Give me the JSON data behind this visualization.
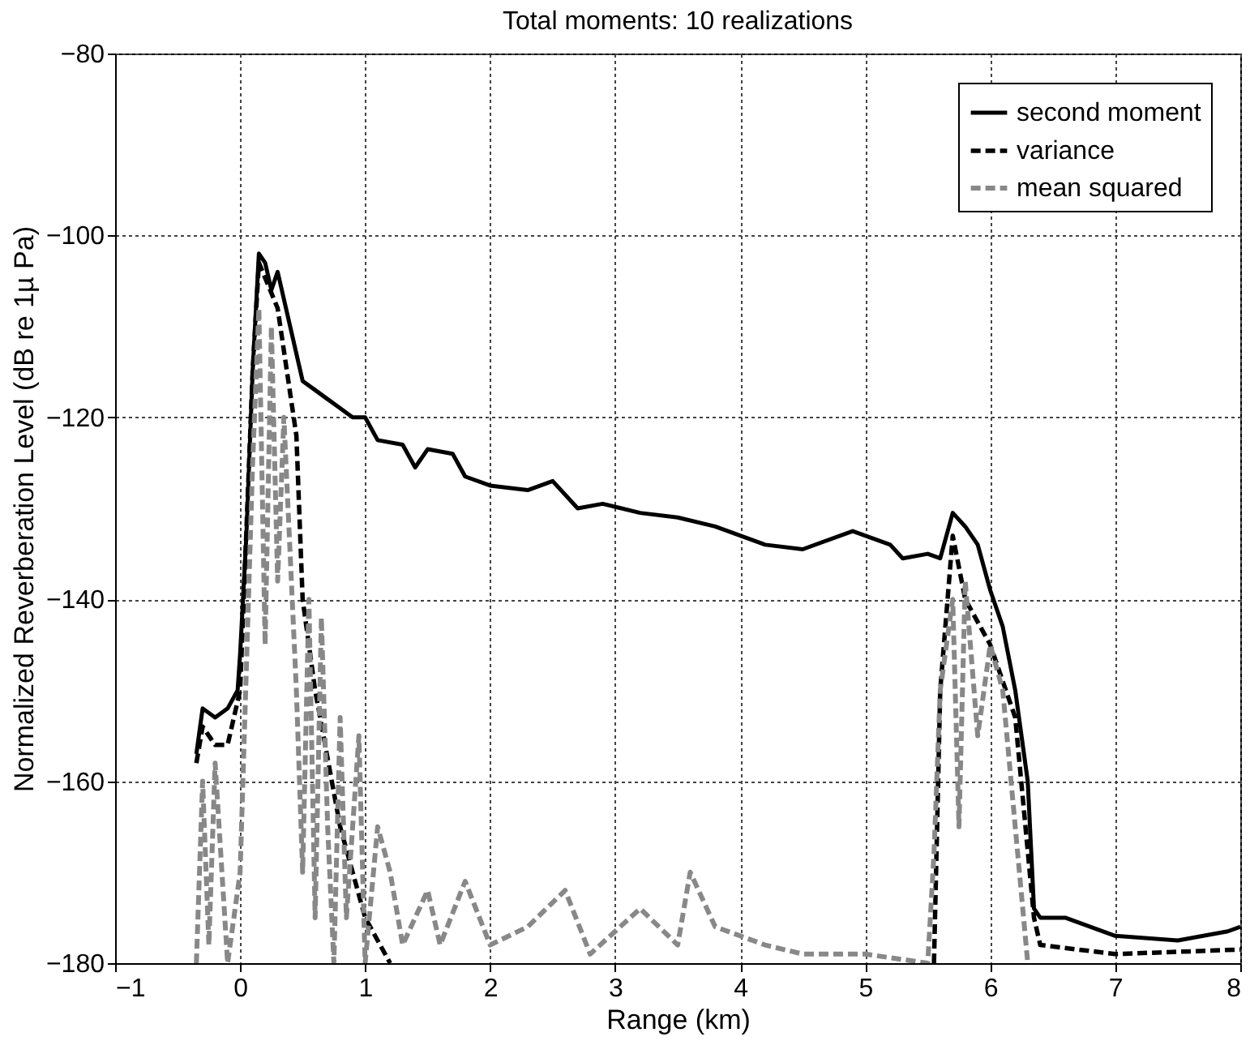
{
  "chart_data": {
    "type": "line",
    "title": "Total moments: 10 realizations",
    "xlabel": "Range (km)",
    "ylabel": "Normalized Reverberation Level (dB re 1µ Pa)",
    "xlim": [
      -1,
      8
    ],
    "xticks": [
      -1,
      0,
      1,
      2,
      3,
      4,
      5,
      6,
      7,
      8
    ],
    "ylim": [
      -180,
      -80
    ],
    "yticks": [
      -180,
      -160,
      -140,
      -120,
      -100,
      -80
    ],
    "grid": true,
    "legend": "top right",
    "series": [
      {
        "name": "second moment",
        "color": "#000000",
        "line_style": "solid",
        "x": [
          -0.35,
          -0.3,
          -0.2,
          -0.1,
          -0.02,
          0.0,
          0.05,
          0.1,
          0.15,
          0.2,
          0.25,
          0.3,
          0.4,
          0.5,
          0.6,
          0.7,
          0.8,
          0.9,
          1.0,
          1.1,
          1.3,
          1.4,
          1.5,
          1.7,
          1.8,
          2.0,
          2.3,
          2.5,
          2.7,
          2.9,
          3.2,
          3.5,
          3.8,
          4.2,
          4.5,
          4.9,
          5.2,
          5.3,
          5.5,
          5.6,
          5.7,
          5.8,
          5.9,
          6.0,
          6.1,
          6.2,
          6.3,
          6.35,
          6.4,
          6.6,
          7.0,
          7.5,
          7.9,
          8.0
        ],
        "values": [
          -157,
          -152,
          -153,
          -152,
          -150,
          -146,
          -133,
          -115,
          -102,
          -103,
          -106,
          -104,
          -110,
          -116,
          -117,
          -118,
          -119,
          -120,
          -120,
          -122.5,
          -123,
          -125.5,
          -123.5,
          -124,
          -126.5,
          -127.5,
          -128,
          -127,
          -130,
          -129.5,
          -130.5,
          -131,
          -132,
          -134,
          -134.5,
          -132.5,
          -134,
          -135.5,
          -135,
          -135.5,
          -130.5,
          -132,
          -134,
          -139,
          -143,
          -150,
          -160,
          -174,
          -175,
          -175,
          -177,
          -177.5,
          -176.5,
          -176
        ]
      },
      {
        "name": "variance",
        "color": "#000000",
        "line_style": "dashed",
        "x": [
          -0.35,
          -0.3,
          -0.2,
          -0.1,
          0.0,
          0.1,
          0.15,
          0.3,
          0.45,
          0.5,
          0.6,
          0.8,
          1.0,
          1.2,
          1.3,
          5.5,
          5.55,
          5.6,
          5.7,
          5.8,
          6.0,
          6.2,
          6.35,
          6.4,
          7.0,
          8.0
        ],
        "values": [
          -158,
          -154,
          -156,
          -156,
          -150,
          -115,
          -103,
          -108,
          -122,
          -140,
          -150,
          -165,
          -175,
          -180,
          null,
          null,
          -180,
          -150,
          -133,
          -140,
          -145,
          -153,
          -175,
          -178,
          -179,
          -178.5
        ]
      },
      {
        "name": "mean squared",
        "color": "#888888",
        "line_style": "dashed",
        "x": [
          -0.35,
          -0.3,
          -0.25,
          -0.2,
          -0.1,
          0.0,
          0.1,
          0.15,
          0.2,
          0.25,
          0.3,
          0.35,
          0.45,
          0.5,
          0.55,
          0.6,
          0.65,
          0.7,
          0.75,
          0.8,
          0.85,
          0.95,
          1.0,
          1.1,
          1.2,
          1.3,
          1.5,
          1.6,
          1.8,
          2.0,
          2.3,
          2.6,
          2.8,
          3.2,
          3.5,
          3.6,
          3.8,
          4.2,
          4.5,
          5.0,
          5.5,
          5.55,
          5.6,
          5.7,
          5.75,
          5.8,
          5.9,
          6.0,
          6.1,
          6.2,
          6.3
        ],
        "values": [
          -180,
          -160,
          -178,
          -158,
          -180,
          -170,
          -125,
          -108,
          -145,
          -110,
          -138,
          -120,
          -150,
          -170,
          -140,
          -175,
          -142,
          -165,
          -180,
          -153,
          -175,
          -155,
          -180,
          -165,
          -170,
          -178,
          -172,
          -178,
          -171,
          -178,
          -176,
          -172,
          -179,
          -174,
          -178,
          -170,
          -176,
          -178,
          -179,
          -179,
          -180,
          -168,
          -150,
          -140,
          -165,
          -138,
          -155,
          -145,
          -150,
          -165,
          -180
        ]
      }
    ]
  }
}
